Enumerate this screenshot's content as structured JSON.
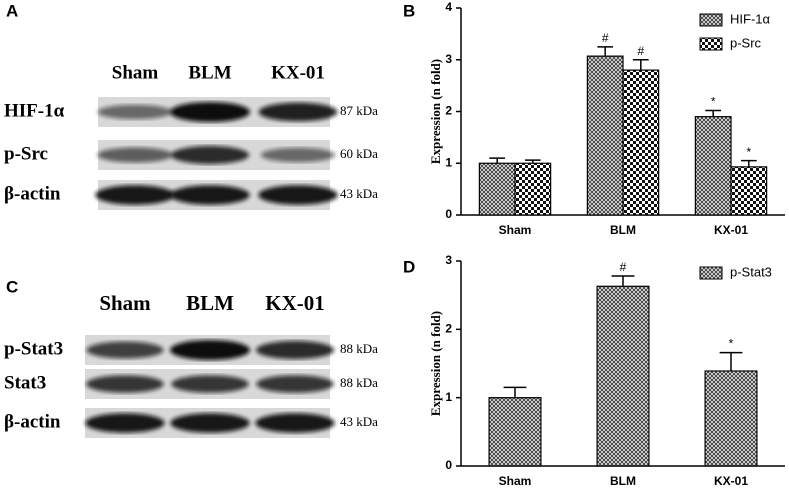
{
  "blots": [
    {
      "panel": "A",
      "lanes": [
        "Sham",
        "BLM",
        "KX-01"
      ],
      "rows": [
        {
          "label": "HIF-1α",
          "size": "87 kDa"
        },
        {
          "label": "p-Src",
          "size": "60 kDa"
        },
        {
          "label": "β-actin",
          "size": "43 kDa"
        }
      ]
    },
    {
      "panel": "C",
      "lanes": [
        "Sham",
        "BLM",
        "KX-01"
      ],
      "rows": [
        {
          "label": "p-Stat3",
          "size": "88 kDa"
        },
        {
          "label": "Stat3",
          "size": "88 kDa"
        },
        {
          "label": "β-actin",
          "size": "43 kDa"
        }
      ]
    }
  ],
  "chart_data": [
    {
      "type": "bar",
      "panel": "B",
      "y_label": "Expression (n fold)",
      "categories": [
        "Sham",
        "BLM",
        "KX-01"
      ],
      "series": [
        {
          "name": "HIF-1α",
          "color": "#444444",
          "values": [
            1.0,
            3.07,
            1.9
          ],
          "errors": [
            0.1,
            0.18,
            0.12
          ],
          "annotations": [
            null,
            "#",
            "*"
          ]
        },
        {
          "name": "p-Src",
          "color": "#111111",
          "values": [
            1.0,
            2.8,
            0.93
          ],
          "errors": [
            0.06,
            0.2,
            0.12
          ],
          "annotations": [
            null,
            "#",
            "*"
          ]
        }
      ],
      "ylim": [
        0,
        4
      ],
      "yticks": [
        0,
        1,
        2,
        3,
        4
      ],
      "legend": "upper right"
    },
    {
      "type": "bar",
      "panel": "D",
      "y_label": "Expression (n fold)",
      "categories": [
        "Sham",
        "BLM",
        "KX-01"
      ],
      "series": [
        {
          "name": "p-Stat3",
          "color": "#444444",
          "values": [
            1.0,
            2.63,
            1.39
          ],
          "errors": [
            0.15,
            0.15,
            0.27
          ],
          "annotations": [
            null,
            "#",
            "*"
          ]
        }
      ],
      "ylim": [
        0,
        3
      ],
      "yticks": [
        0,
        1,
        2,
        3
      ],
      "legend": "upper right"
    }
  ]
}
